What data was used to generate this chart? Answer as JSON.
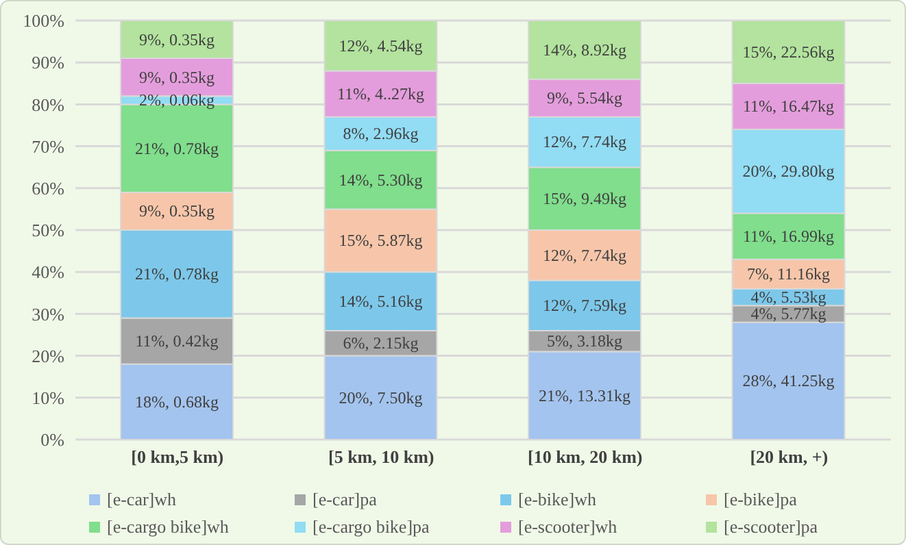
{
  "chart_data": {
    "type": "bar",
    "stacked": true,
    "categories": [
      "[0 km,5 km)",
      "[5 km, 10 km)",
      "[10 km, 20 km)",
      "[20 km, +)"
    ],
    "series": [
      {
        "name": "[e-car]wh",
        "color": "#a3c4ee",
        "values": [
          18,
          20,
          21,
          28
        ],
        "value_labels": [
          "18%, 0.68kg",
          "20%, 7.50kg",
          "21%, 13.31kg",
          "28%, 41.25kg"
        ]
      },
      {
        "name": "[e-car]pa",
        "color": "#a6a6a6",
        "values": [
          11,
          6,
          5,
          4
        ],
        "value_labels": [
          "11%, 0.42kg",
          "6%, 2.15kg",
          "5%, 3.18kg",
          "4%, 5.77kg"
        ]
      },
      {
        "name": "[e-bike]wh",
        "color": "#7dc8ea",
        "values": [
          21,
          14,
          12,
          4
        ],
        "value_labels": [
          "21%, 0.78kg",
          "14%, 5.16kg",
          "12%, 7.59kg",
          "4%, 5.53kg"
        ]
      },
      {
        "name": "[e-bike]pa",
        "color": "#f7c6aa",
        "values": [
          9,
          15,
          12,
          7
        ],
        "value_labels": [
          "9%, 0.35kg",
          "15%, 5.87kg",
          "12%, 7.74kg",
          "7%, 11.16kg"
        ]
      },
      {
        "name": "[e-cargo bike]wh",
        "color": "#80de8c",
        "values": [
          21,
          14,
          15,
          11
        ],
        "value_labels": [
          "21%, 0.78kg",
          "14%, 5.30kg",
          "15%, 9.49kg",
          "11%, 16.99kg"
        ]
      },
      {
        "name": "[e-cargo bike]pa",
        "color": "#92dcf4",
        "values": [
          2,
          8,
          12,
          20
        ],
        "value_labels": [
          "2%, 0.06kg",
          "8%, 2.96kg",
          "12%, 7.74kg",
          "20%, 29.80kg"
        ]
      },
      {
        "name": "[e-scooter]wh",
        "color": "#e49ddc",
        "values": [
          9,
          11,
          9,
          11
        ],
        "value_labels": [
          "9%, 0.35kg",
          "11%, 4..27kg",
          "9%, 5.54kg",
          "11%, 16.47kg"
        ]
      },
      {
        "name": "[e-scooter]pa",
        "color": "#b3e39e",
        "values": [
          9,
          12,
          14,
          15
        ],
        "value_labels": [
          "9%, 0.35kg",
          "12%, 4.54kg",
          "14%, 8.92kg",
          "15%, 22.56kg"
        ]
      }
    ],
    "ylim": [
      0,
      100
    ],
    "yticks": [
      {
        "value": 0,
        "label": "0%"
      },
      {
        "value": 10,
        "label": "10%"
      },
      {
        "value": 20,
        "label": "20%"
      },
      {
        "value": 30,
        "label": "30%"
      },
      {
        "value": 40,
        "label": "40%"
      },
      {
        "value": 50,
        "label": "50%"
      },
      {
        "value": 60,
        "label": "60%"
      },
      {
        "value": 70,
        "label": "70%"
      },
      {
        "value": 80,
        "label": "80%"
      },
      {
        "value": 90,
        "label": "90%"
      },
      {
        "value": 100,
        "label": "100%"
      }
    ],
    "grid": "y",
    "legend": "bottom"
  }
}
